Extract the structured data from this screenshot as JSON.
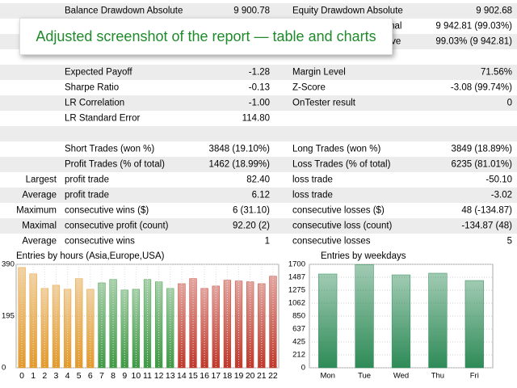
{
  "banner": "Adjusted screenshot of the report — table and charts",
  "table": {
    "rows": [
      [
        null,
        "Balance Drawdown Absolute",
        "9 900.78",
        "Equity Drawdown Absolute",
        "9 902.68"
      ],
      [
        null,
        null,
        null,
        "Equity Drawdown Maximal",
        "9 942.81 (99.03%)"
      ],
      [
        null,
        null,
        null,
        "Equity Drawdown Relative",
        "99.03% (9 942.81)"
      ],
      null,
      [
        null,
        "Expected Payoff",
        "-1.28",
        "Margin Level",
        "71.56%"
      ],
      [
        null,
        "Sharpe Ratio",
        "-0.13",
        "Z-Score",
        "-3.08 (99.74%)"
      ],
      [
        null,
        "LR Correlation",
        "-1.00",
        "OnTester result",
        "0"
      ],
      [
        null,
        "LR Standard Error",
        "114.80",
        null,
        null
      ],
      null,
      [
        null,
        "Short Trades (won %)",
        "3848 (19.10%)",
        "Long Trades (won %)",
        "3849 (18.89%)"
      ],
      [
        null,
        "Profit Trades (% of total)",
        "1462 (18.99%)",
        "Loss Trades (% of total)",
        "6235 (81.01%)"
      ],
      [
        "Largest",
        "profit trade",
        "82.40",
        "loss trade",
        "-50.10"
      ],
      [
        "Average",
        "profit trade",
        "6.12",
        "loss trade",
        "-3.02"
      ],
      [
        "Maximum",
        "consecutive wins ($)",
        "6 (31.10)",
        "consecutive losses ($)",
        "48 (-134.87)"
      ],
      [
        "Maximal",
        "consecutive profit (count)",
        "92.20 (2)",
        "consecutive loss (count)",
        "-134.87 (48)"
      ],
      [
        "Average",
        "consecutive wins",
        "1",
        "consecutive losses",
        "5"
      ]
    ]
  },
  "chart_data": [
    {
      "type": "bar",
      "title": "Entries by hours (Asia,Europe,USA)",
      "categories": [
        "0",
        "1",
        "2",
        "3",
        "4",
        "5",
        "6",
        "7",
        "8",
        "9",
        "10",
        "11",
        "12",
        "13",
        "14",
        "15",
        "16",
        "17",
        "18",
        "19",
        "20",
        "21",
        "22"
      ],
      "values": [
        378,
        354,
        299,
        311,
        296,
        336,
        296,
        320,
        333,
        293,
        296,
        333,
        324,
        299,
        317,
        336,
        299,
        308,
        330,
        327,
        324,
        317,
        345
      ],
      "colors": [
        "#e39a2c",
        "#e39a2c",
        "#e39a2c",
        "#e39a2c",
        "#e39a2c",
        "#e39a2c",
        "#e39a2c",
        "#3f9a45",
        "#3f9a45",
        "#3f9a45",
        "#3f9a45",
        "#3f9a45",
        "#3f9a45",
        "#3f9a45",
        "#c0392b",
        "#c0392b",
        "#c0392b",
        "#c0392b",
        "#c0392b",
        "#c0392b",
        "#c0392b",
        "#c0392b",
        "#c0392b"
      ],
      "ylim": [
        0,
        390
      ],
      "yticks": [
        0,
        195,
        390
      ],
      "grid": true
    },
    {
      "type": "bar",
      "title": "Entries by weekdays",
      "categories": [
        "Mon",
        "Tue",
        "Wed",
        "Thu",
        "Fri"
      ],
      "values": [
        1541,
        1695,
        1527,
        1554,
        1434
      ],
      "colors": [
        "#2e8b57",
        "#2e8b57",
        "#2e8b57",
        "#2e8b57",
        "#2e8b57"
      ],
      "ylim": [
        0,
        1700
      ],
      "yticks": [
        0,
        212,
        425,
        637,
        850,
        1062,
        1275,
        1487,
        1700
      ],
      "grid": true
    }
  ]
}
